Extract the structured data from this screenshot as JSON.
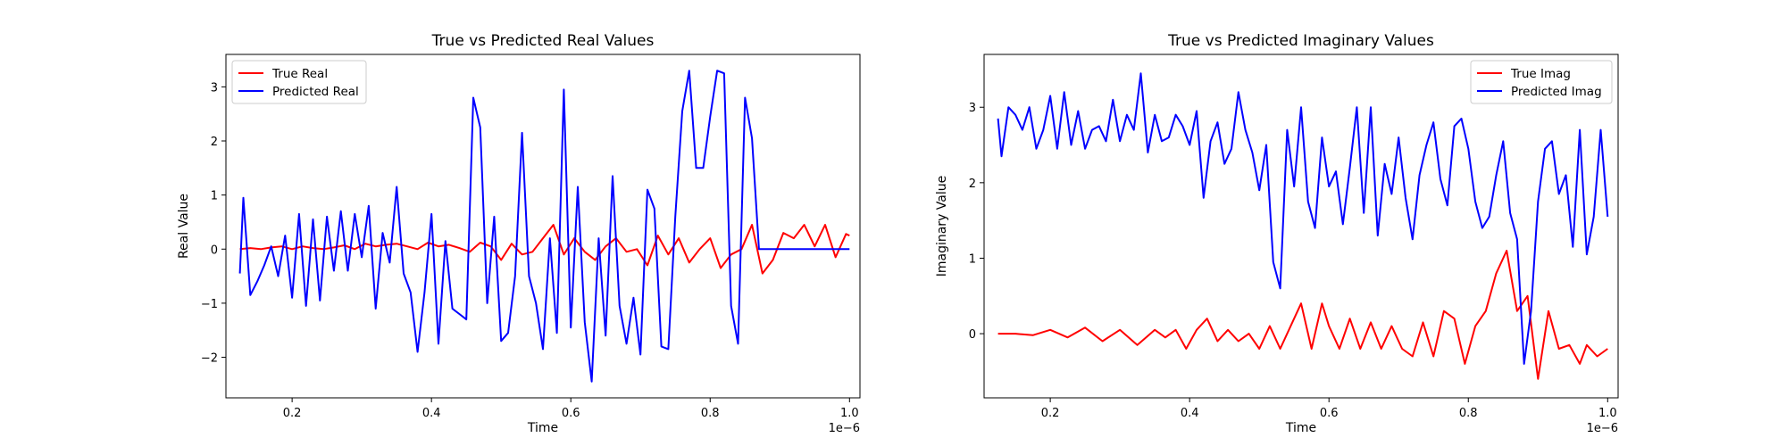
{
  "chart_data": [
    {
      "type": "line",
      "title": "True vs Predicted Real Values",
      "xlabel": "Time",
      "ylabel": "Real Value",
      "x_offset_label": "1e−6",
      "xlim": [
        0.105,
        1.015
      ],
      "ylim": [
        -2.75,
        3.6
      ],
      "xticks": [
        0.2,
        0.4,
        0.6,
        0.8,
        1.0
      ],
      "xtick_labels": [
        "0.2",
        "0.4",
        "0.6",
        "0.8",
        "1.0"
      ],
      "yticks": [
        -2,
        -1,
        0,
        1,
        2,
        3
      ],
      "ytick_labels": [
        "−2",
        "−1",
        "0",
        "1",
        "2",
        "3"
      ],
      "legend_loc": "upper left",
      "series": [
        {
          "name": "True Real",
          "color": "#ff0000",
          "x": [
            0.125,
            0.14,
            0.155,
            0.17,
            0.185,
            0.2,
            0.215,
            0.23,
            0.245,
            0.26,
            0.275,
            0.29,
            0.305,
            0.32,
            0.335,
            0.35,
            0.365,
            0.38,
            0.395,
            0.41,
            0.425,
            0.44,
            0.455,
            0.47,
            0.485,
            0.5,
            0.515,
            0.53,
            0.545,
            0.56,
            0.575,
            0.59,
            0.605,
            0.62,
            0.635,
            0.65,
            0.665,
            0.68,
            0.695,
            0.71,
            0.725,
            0.74,
            0.755,
            0.77,
            0.785,
            0.8,
            0.815,
            0.83,
            0.845,
            0.86,
            0.875,
            0.89,
            0.905,
            0.92,
            0.935,
            0.95,
            0.965,
            0.98,
            0.995,
            1.0
          ],
          "values": [
            0.0,
            0.02,
            0.0,
            0.03,
            0.05,
            0.0,
            0.05,
            0.02,
            0.0,
            0.03,
            0.07,
            0.0,
            0.1,
            0.05,
            0.08,
            0.1,
            0.05,
            0.0,
            0.12,
            0.05,
            0.08,
            0.02,
            -0.05,
            0.12,
            0.05,
            -0.2,
            0.1,
            -0.1,
            -0.05,
            0.2,
            0.45,
            -0.1,
            0.2,
            -0.05,
            -0.2,
            0.05,
            0.2,
            -0.05,
            0.0,
            -0.3,
            0.25,
            -0.1,
            0.2,
            -0.25,
            0.0,
            0.2,
            -0.35,
            -0.1,
            0.0,
            0.45,
            -0.45,
            -0.2,
            0.3,
            0.2,
            0.45,
            0.05,
            0.45,
            -0.15,
            0.28,
            0.25
          ]
        },
        {
          "name": "Predicted Real",
          "color": "#0000ff",
          "x": [
            0.125,
            0.13,
            0.14,
            0.15,
            0.16,
            0.17,
            0.18,
            0.19,
            0.2,
            0.21,
            0.22,
            0.23,
            0.24,
            0.25,
            0.26,
            0.27,
            0.28,
            0.29,
            0.3,
            0.31,
            0.32,
            0.33,
            0.34,
            0.35,
            0.36,
            0.37,
            0.38,
            0.39,
            0.4,
            0.41,
            0.42,
            0.43,
            0.44,
            0.45,
            0.46,
            0.47,
            0.48,
            0.49,
            0.5,
            0.51,
            0.52,
            0.53,
            0.54,
            0.55,
            0.56,
            0.57,
            0.58,
            0.59,
            0.6,
            0.61,
            0.62,
            0.63,
            0.64,
            0.65,
            0.66,
            0.67,
            0.68,
            0.69,
            0.7,
            0.71,
            0.72,
            0.73,
            0.74,
            0.75,
            0.76,
            0.77,
            0.78,
            0.79,
            0.8,
            0.81,
            0.82,
            0.83,
            0.84,
            0.85,
            0.86,
            0.87,
            0.88,
            0.89,
            0.9,
            0.91,
            0.92,
            0.93,
            0.94,
            0.95,
            0.96,
            0.97,
            0.98,
            0.99,
            1.0
          ],
          "values": [
            -0.45,
            0.95,
            -0.85,
            -0.6,
            -0.3,
            0.05,
            -0.5,
            0.25,
            -0.9,
            0.65,
            -1.05,
            0.55,
            -0.95,
            0.6,
            -0.4,
            0.7,
            -0.4,
            0.65,
            -0.15,
            0.8,
            -1.1,
            0.3,
            -0.25,
            1.15,
            -0.45,
            -0.8,
            -1.9,
            -0.8,
            0.65,
            -1.75,
            0.15,
            -1.1,
            -1.2,
            -1.3,
            2.8,
            2.25,
            -1.0,
            0.6,
            -1.7,
            -1.55,
            -0.5,
            2.15,
            -0.5,
            -1.0,
            -1.85,
            0.2,
            -1.55,
            2.95,
            -1.45,
            1.15,
            -1.35,
            -2.45,
            0.2,
            -1.6,
            1.35,
            -1.05,
            -1.75,
            -0.9,
            -1.95,
            1.1,
            0.75,
            -1.8,
            -1.85,
            0.6,
            2.55,
            3.3,
            1.5,
            1.5,
            2.45,
            3.3,
            3.25,
            -1.05,
            -1.75,
            2.8,
            2.05,
            0.0,
            0.0,
            0.0,
            0.0,
            0.0,
            0.0,
            0.0,
            0.0,
            0.0,
            0.0,
            0.0,
            0.0,
            0.0,
            0.0
          ]
        }
      ]
    },
    {
      "type": "line",
      "title": "True vs Predicted Imaginary Values",
      "xlabel": "Time",
      "ylabel": "Imaginary Value",
      "x_offset_label": "1e−6",
      "xlim": [
        0.105,
        1.015
      ],
      "ylim": [
        -0.85,
        3.7
      ],
      "xticks": [
        0.2,
        0.4,
        0.6,
        0.8,
        1.0
      ],
      "xtick_labels": [
        "0.2",
        "0.4",
        "0.6",
        "0.8",
        "1.0"
      ],
      "yticks": [
        0,
        1,
        2,
        3
      ],
      "ytick_labels": [
        "0",
        "1",
        "2",
        "3"
      ],
      "legend_loc": "upper right",
      "series": [
        {
          "name": "True Imag",
          "color": "#ff0000",
          "x": [
            0.125,
            0.15,
            0.175,
            0.2,
            0.225,
            0.25,
            0.275,
            0.3,
            0.325,
            0.35,
            0.365,
            0.38,
            0.395,
            0.41,
            0.425,
            0.44,
            0.455,
            0.47,
            0.485,
            0.5,
            0.515,
            0.53,
            0.545,
            0.56,
            0.575,
            0.59,
            0.6,
            0.615,
            0.63,
            0.645,
            0.66,
            0.675,
            0.69,
            0.705,
            0.72,
            0.735,
            0.75,
            0.765,
            0.78,
            0.795,
            0.81,
            0.825,
            0.84,
            0.855,
            0.87,
            0.885,
            0.9,
            0.915,
            0.93,
            0.945,
            0.96,
            0.97,
            0.985,
            1.0
          ],
          "values": [
            0.0,
            0.0,
            -0.02,
            0.05,
            -0.05,
            0.08,
            -0.1,
            0.05,
            -0.15,
            0.05,
            -0.05,
            0.05,
            -0.2,
            0.05,
            0.2,
            -0.1,
            0.05,
            -0.1,
            0.0,
            -0.2,
            0.1,
            -0.2,
            0.1,
            0.4,
            -0.2,
            0.4,
            0.1,
            -0.2,
            0.2,
            -0.2,
            0.15,
            -0.2,
            0.1,
            -0.2,
            -0.3,
            0.15,
            -0.3,
            0.3,
            0.2,
            -0.4,
            0.1,
            0.3,
            0.8,
            1.1,
            0.3,
            0.5,
            -0.6,
            0.3,
            -0.2,
            -0.15,
            -0.4,
            -0.15,
            -0.3,
            -0.2
          ]
        },
        {
          "name": "Predicted Imag",
          "color": "#0000ff",
          "x": [
            0.125,
            0.13,
            0.14,
            0.15,
            0.16,
            0.17,
            0.18,
            0.19,
            0.2,
            0.21,
            0.22,
            0.23,
            0.24,
            0.25,
            0.26,
            0.27,
            0.28,
            0.29,
            0.3,
            0.31,
            0.32,
            0.33,
            0.34,
            0.35,
            0.36,
            0.37,
            0.38,
            0.39,
            0.4,
            0.41,
            0.42,
            0.43,
            0.44,
            0.45,
            0.46,
            0.47,
            0.48,
            0.49,
            0.5,
            0.51,
            0.52,
            0.53,
            0.54,
            0.55,
            0.56,
            0.57,
            0.58,
            0.59,
            0.6,
            0.61,
            0.62,
            0.63,
            0.64,
            0.65,
            0.66,
            0.67,
            0.68,
            0.69,
            0.7,
            0.71,
            0.72,
            0.73,
            0.74,
            0.75,
            0.76,
            0.77,
            0.78,
            0.79,
            0.8,
            0.81,
            0.82,
            0.83,
            0.84,
            0.85,
            0.86,
            0.87,
            0.88,
            0.89,
            0.9,
            0.91,
            0.92,
            0.93,
            0.94,
            0.95,
            0.96,
            0.97,
            0.98,
            0.99,
            1.0
          ],
          "values": [
            2.85,
            2.35,
            3.0,
            2.9,
            2.7,
            3.0,
            2.45,
            2.7,
            3.15,
            2.45,
            3.2,
            2.5,
            2.95,
            2.45,
            2.7,
            2.75,
            2.55,
            3.1,
            2.55,
            2.9,
            2.7,
            3.45,
            2.4,
            2.9,
            2.55,
            2.6,
            2.9,
            2.75,
            2.5,
            2.95,
            1.8,
            2.55,
            2.8,
            2.25,
            2.45,
            3.2,
            2.7,
            2.4,
            1.9,
            2.5,
            0.95,
            0.6,
            2.7,
            1.95,
            3.0,
            1.75,
            1.4,
            2.6,
            1.95,
            2.15,
            1.45,
            2.2,
            3.0,
            1.6,
            3.0,
            1.3,
            2.25,
            1.85,
            2.6,
            1.8,
            1.25,
            2.1,
            2.5,
            2.8,
            2.05,
            1.7,
            2.75,
            2.85,
            2.45,
            1.75,
            1.4,
            1.55,
            2.1,
            2.55,
            1.6,
            1.25,
            -0.4,
            0.3,
            1.75,
            2.45,
            2.55,
            1.85,
            2.1,
            1.15,
            2.7,
            1.05,
            1.55,
            2.7,
            1.55
          ]
        }
      ]
    }
  ]
}
